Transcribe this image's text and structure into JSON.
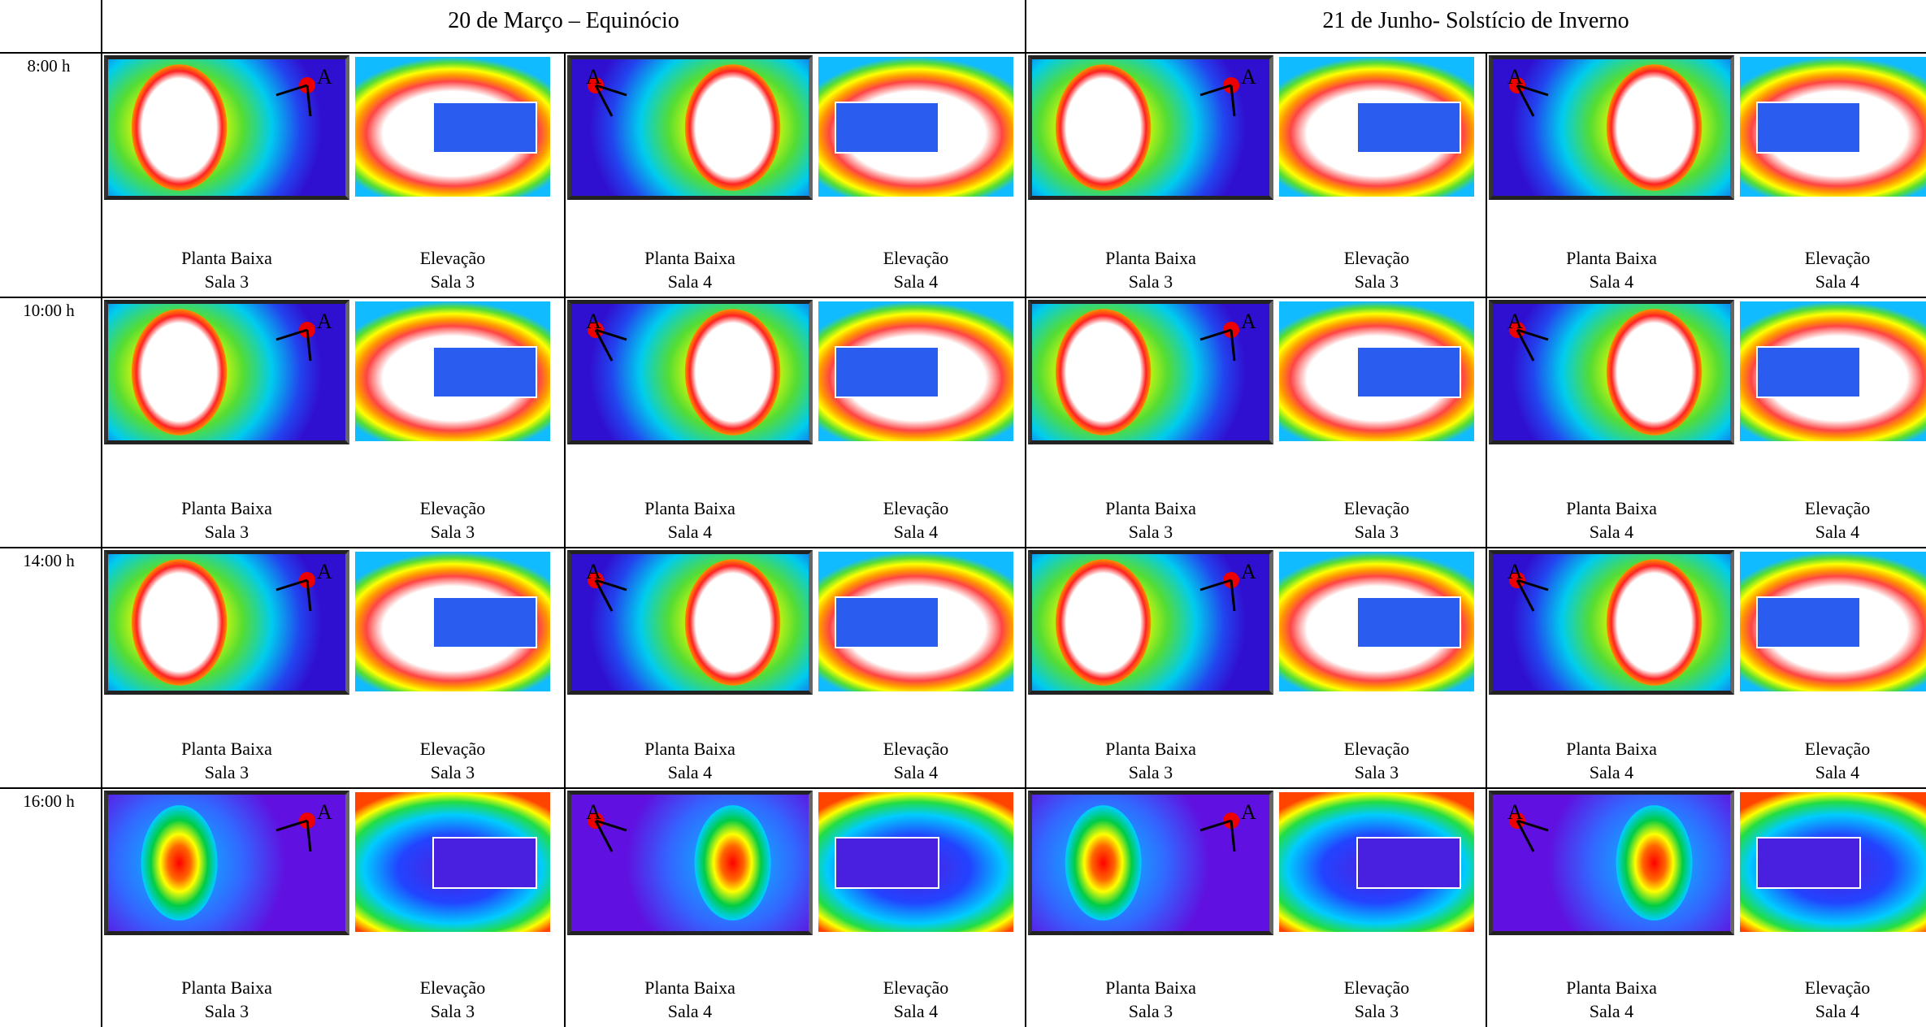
{
  "header": {
    "dates": [
      "20 de Março – Equinócio",
      "21 de Junho- Solstício de Inverno"
    ]
  },
  "captions": [
    [
      "Planta Baixa",
      "Sala 3"
    ],
    [
      "Elevação",
      "Sala 3"
    ],
    [
      "Planta Baixa",
      "Sala 4"
    ],
    [
      "Elevação",
      "Sala 4"
    ]
  ],
  "point_label": "A",
  "rows": [
    {
      "time": "8:00 h"
    },
    {
      "time": "10:00 h"
    },
    {
      "time": "14:00 h"
    },
    {
      "time": "16:00 h"
    }
  ]
}
